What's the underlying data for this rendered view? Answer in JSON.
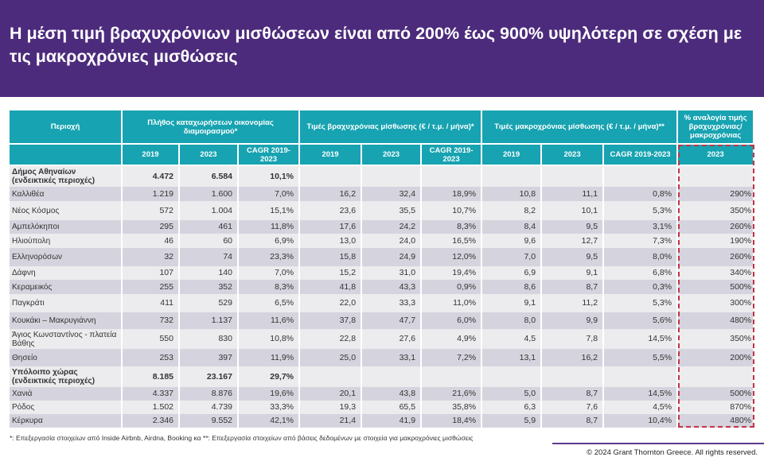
{
  "title": "Η μέση τιμή βραχυχρόνιων μισθώσεων είναι από 200% έως 900% υψηλότερη σε σχέση με τις μακροχρόνιες μισθώσεις",
  "headers": {
    "region": "Περιοχή",
    "listings": "Πλήθος καταχωρήσεων οικονομίας διαμοιρασμού*",
    "short_term": "Τιμές βραχυχρόνιας μίσθωσης (€ / τ.μ. / μήνα)*",
    "long_term": "Τιμές μακροχρόνιας μίσθωσης (€ / τ.μ. / μήνα)**",
    "ratio": "% αναλογία τιμής βραχυχρόνιας/ μακροχρόνιας",
    "y2019": "2019",
    "y2023": "2023",
    "cagr": "CAGR 2019-2023"
  },
  "rows": [
    {
      "type": "total",
      "name": "Δήμος Αθηναίων (ενδεικτικές περιοχές)",
      "l2019": "4.472",
      "l2023": "6.584",
      "lcagr": "10,1%",
      "s2019": "",
      "s2023": "",
      "scagr": "",
      "m2019": "",
      "m2023": "",
      "mcagr": "",
      "ratio": ""
    },
    {
      "type": "row",
      "name": "Καλλιθέα",
      "l2019": "1.219",
      "l2023": "1.600",
      "lcagr": "7,0%",
      "s2019": "16,2",
      "s2023": "32,4",
      "scagr": "18,9%",
      "m2019": "10,8",
      "m2023": "11,1",
      "mcagr": "0,8%",
      "ratio": "290%"
    },
    {
      "type": "row",
      "name": "Νέος Κόσμος",
      "l2019": "572",
      "l2023": "1.004",
      "lcagr": "15,1%",
      "s2019": "23,6",
      "s2023": "35,5",
      "scagr": "10,7%",
      "m2019": "8,2",
      "m2023": "10,1",
      "mcagr": "5,3%",
      "ratio": "350%"
    },
    {
      "type": "row",
      "name": "Αμπελόκηποι",
      "l2019": "295",
      "l2023": "461",
      "lcagr": "11,8%",
      "s2019": "17,6",
      "s2023": "24,2",
      "scagr": "8,3%",
      "m2019": "8,4",
      "m2023": "9,5",
      "mcagr": "3,1%",
      "ratio": "260%"
    },
    {
      "type": "row",
      "name": "Ηλιούπολη",
      "l2019": "46",
      "l2023": "60",
      "lcagr": "6,9%",
      "s2019": "13,0",
      "s2023": "24,0",
      "scagr": "16,5%",
      "m2019": "9,6",
      "m2023": "12,7",
      "mcagr": "7,3%",
      "ratio": "190%"
    },
    {
      "type": "row",
      "name": "Ελληνορόσων",
      "l2019": "32",
      "l2023": "74",
      "lcagr": "23,3%",
      "s2019": "15,8",
      "s2023": "24,9",
      "scagr": "12,0%",
      "m2019": "7,0",
      "m2023": "9,5",
      "mcagr": "8,0%",
      "ratio": "260%"
    },
    {
      "type": "row",
      "name": "Δάφνη",
      "l2019": "107",
      "l2023": "140",
      "lcagr": "7,0%",
      "s2019": "15,2",
      "s2023": "31,0",
      "scagr": "19,4%",
      "m2019": "6,9",
      "m2023": "9,1",
      "mcagr": "6,8%",
      "ratio": "340%"
    },
    {
      "type": "row",
      "name": "Κεραμεικός",
      "l2019": "255",
      "l2023": "352",
      "lcagr": "8,3%",
      "s2019": "41,8",
      "s2023": "43,3",
      "scagr": "0,9%",
      "m2019": "8,6",
      "m2023": "8,7",
      "mcagr": "0,3%",
      "ratio": "500%"
    },
    {
      "type": "row",
      "name": "Παγκράτι",
      "l2019": "411",
      "l2023": "529",
      "lcagr": "6,5%",
      "s2019": "22,0",
      "s2023": "33,3",
      "scagr": "11,0%",
      "m2019": "9,1",
      "m2023": "11,2",
      "mcagr": "5,3%",
      "ratio": "300%"
    },
    {
      "type": "row",
      "name": "Κουκάκι – Μακρυγιάννη",
      "l2019": "732",
      "l2023": "1.137",
      "lcagr": "11,6%",
      "s2019": "37,8",
      "s2023": "47,7",
      "scagr": "6,0%",
      "m2019": "8,0",
      "m2023": "9,9",
      "mcagr": "5,6%",
      "ratio": "480%"
    },
    {
      "type": "row",
      "name": "Άγιος Κωνσταντίνος - πλατεία Βάθης",
      "l2019": "550",
      "l2023": "830",
      "lcagr": "10,8%",
      "s2019": "22,8",
      "s2023": "27,6",
      "scagr": "4,9%",
      "m2019": "4,5",
      "m2023": "7,8",
      "mcagr": "14,5%",
      "ratio": "350%"
    },
    {
      "type": "row",
      "name": "Θησείο",
      "l2019": "253",
      "l2023": "397",
      "lcagr": "11,9%",
      "s2019": "25,0",
      "s2023": "33,1",
      "scagr": "7,2%",
      "m2019": "13,1",
      "m2023": "16,2",
      "mcagr": "5,5%",
      "ratio": "200%"
    },
    {
      "type": "total",
      "name": "Υπόλοιπο χώρας (ενδεικτικές περιοχές)",
      "l2019": "8.185",
      "l2023": "23.167",
      "lcagr": "29,7%",
      "s2019": "",
      "s2023": "",
      "scagr": "",
      "m2019": "",
      "m2023": "",
      "mcagr": "",
      "ratio": ""
    },
    {
      "type": "row",
      "name": "Χανιά",
      "l2019": "4.337",
      "l2023": "8.876",
      "lcagr": "19,6%",
      "s2019": "20,1",
      "s2023": "43,8",
      "scagr": "21,6%",
      "m2019": "5,0",
      "m2023": "8,7",
      "mcagr": "14,5%",
      "ratio": "500%"
    },
    {
      "type": "row",
      "name": "Ρόδος",
      "l2019": "1.502",
      "l2023": "4.739",
      "lcagr": "33,3%",
      "s2019": "19,3",
      "s2023": "65,5",
      "scagr": "35,8%",
      "m2019": "6,3",
      "m2023": "7,6",
      "mcagr": "4,5%",
      "ratio": "870%"
    },
    {
      "type": "row",
      "name": "Κέρκυρα",
      "l2019": "2.346",
      "l2023": "9.552",
      "lcagr": "42,1%",
      "s2019": "21,4",
      "s2023": "41,9",
      "scagr": "18,4%",
      "m2019": "5,9",
      "m2023": "8,7",
      "mcagr": "10,4%",
      "ratio": "480%"
    }
  ],
  "footnote": "*: Επεξεργασία στοιχείων από Inside Airbnb, Airdna, Booking κα **: Επεξεργασία στοιχείων από βάσεις δεδομένων με στοιχεία για μακροχρόνιες μισθώσεις",
  "copyright": "© 2024 Grant Thornton Greece. All rights reserved.",
  "colors": {
    "title_bg": "#4c2b7c",
    "header_bg": "#17a3b1",
    "highlight": "#c0334a"
  }
}
